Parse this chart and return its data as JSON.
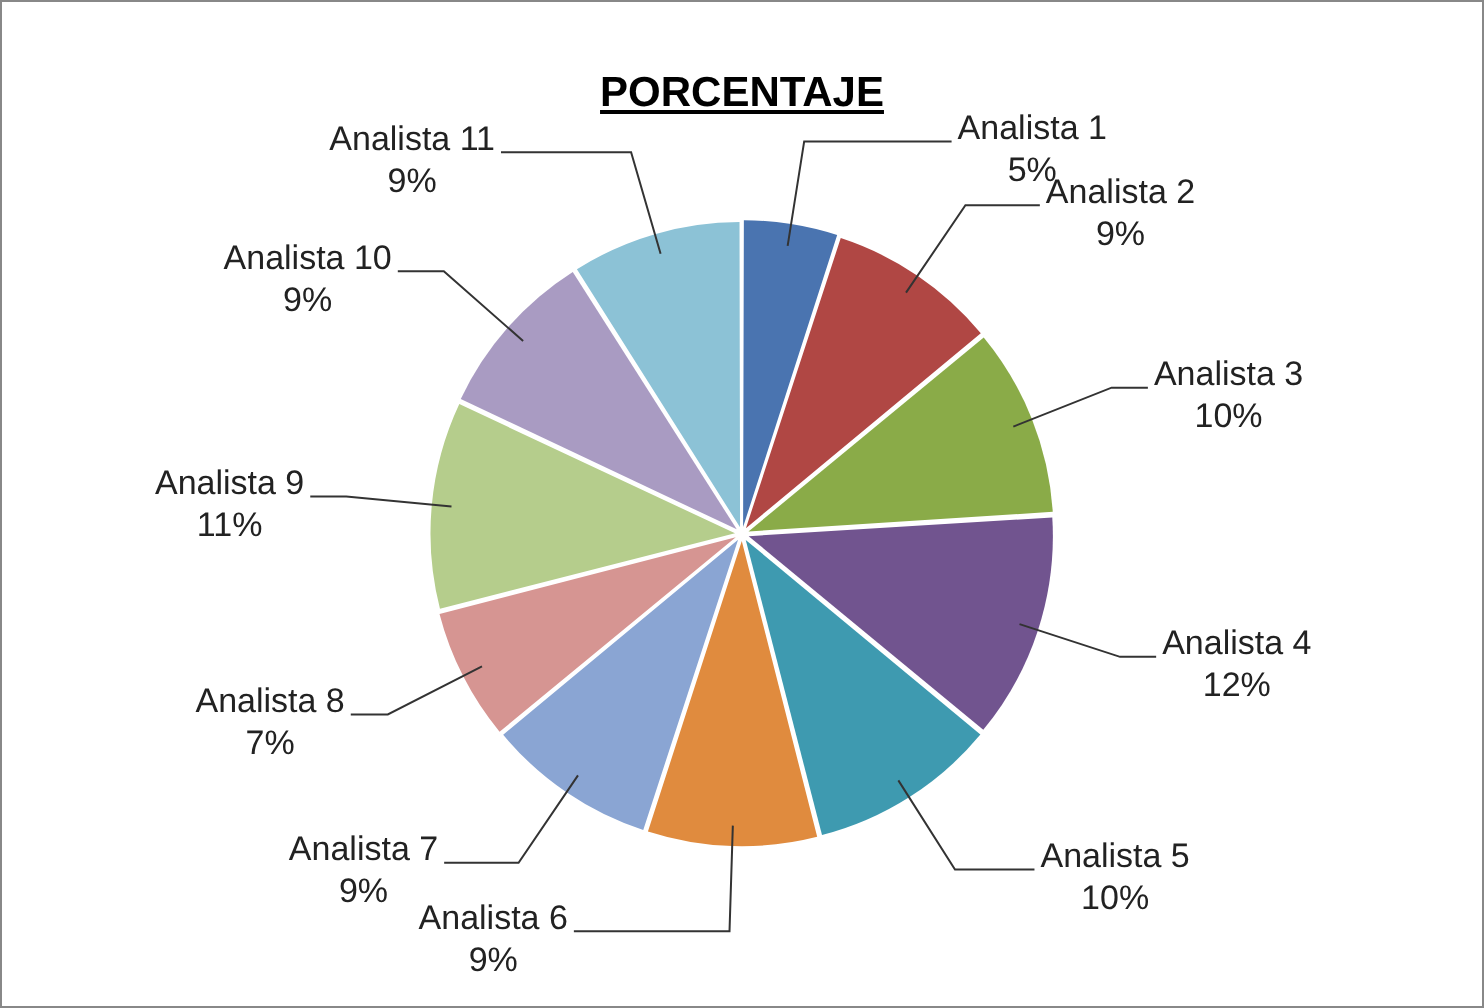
{
  "chart_data": {
    "type": "pie",
    "title": "PORCENTAJE",
    "categories": [
      "Analista 1",
      "Analista 2",
      "Analista 3",
      "Analista 4",
      "Analista 5",
      "Analista 6",
      "Analista 7",
      "Analista 8",
      "Analista 9",
      "Analista 10",
      "Analista 11"
    ],
    "values": [
      5,
      9,
      10,
      12,
      10,
      9,
      9,
      7,
      11,
      9,
      9
    ],
    "value_labels": [
      "5%",
      "9%",
      "10%",
      "12%",
      "10%",
      "9%",
      "9%",
      "7%",
      "11%",
      "9%",
      "9%"
    ],
    "colors": [
      "#4a74b0",
      "#b04744",
      "#8aab48",
      "#71548f",
      "#3e9ab0",
      "#e08b3e",
      "#8aa5d3",
      "#d69592",
      "#b5cd8c",
      "#a99bc2",
      "#8cc2d6"
    ],
    "legend": false
  }
}
